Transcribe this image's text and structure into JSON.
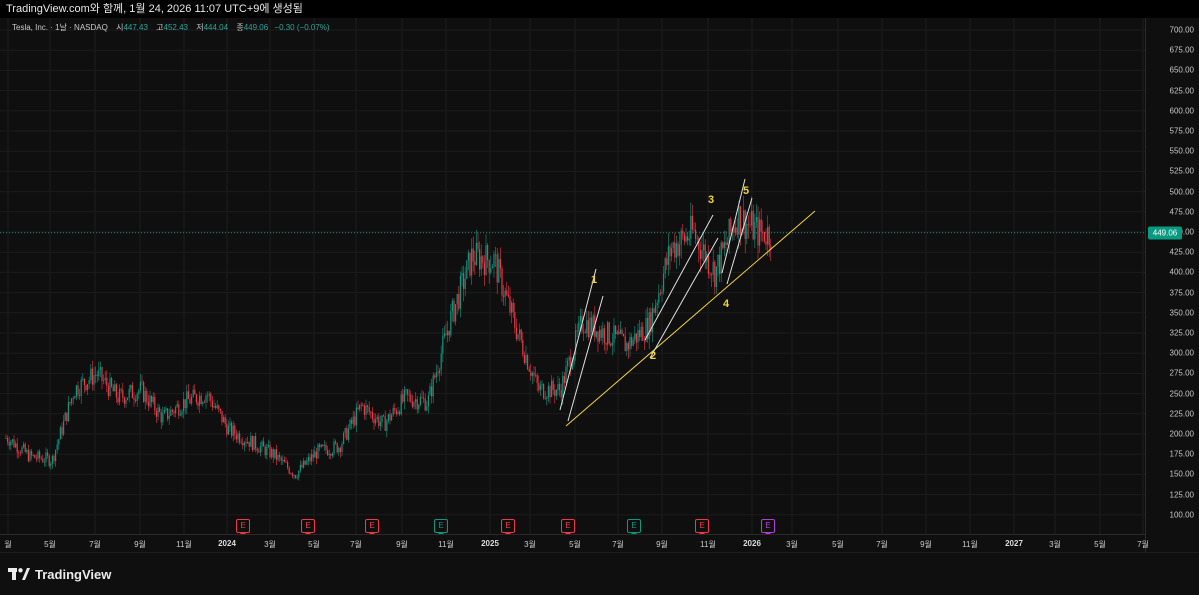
{
  "header": {
    "title": "TradingView.com와 함께, 1월 24, 2026 11:07 UTC+9에 생성됨"
  },
  "legend": {
    "symbol": "Tesla, Inc. · 1날 · NASDAQ",
    "open_label": "시",
    "open": "447.43",
    "high_label": "고",
    "high": "452.43",
    "low_label": "저",
    "low": "444.04",
    "close_label": "종",
    "close": "449.06",
    "change": "−0.30 (−0.07%)"
  },
  "last_price": "449.06",
  "colors": {
    "up": "#089981",
    "down": "#f23645",
    "trendline": "#f2d335",
    "channel": "#e0e0e0",
    "earnings_red": "#f23645",
    "earnings_green": "#089981",
    "earnings_purple": "#b33bd6"
  },
  "yaxis": {
    "ticks": [
      "700.00",
      "675.00",
      "650.00",
      "625.00",
      "600.00",
      "575.00",
      "550.00",
      "525.00",
      "500.00",
      "475.00",
      "450.00",
      "425.00",
      "400.00",
      "375.00",
      "350.00",
      "325.00",
      "300.00",
      "275.00",
      "250.00",
      "225.00",
      "200.00",
      "175.00",
      "150.00",
      "125.00",
      "100.00"
    ]
  },
  "xaxis": {
    "ticks": [
      {
        "label": "월",
        "year": false
      },
      {
        "label": "5월",
        "year": false
      },
      {
        "label": "7월",
        "year": false
      },
      {
        "label": "9월",
        "year": false
      },
      {
        "label": "11월",
        "year": false
      },
      {
        "label": "2024",
        "year": true
      },
      {
        "label": "3월",
        "year": false
      },
      {
        "label": "5월",
        "year": false
      },
      {
        "label": "7월",
        "year": false
      },
      {
        "label": "9월",
        "year": false
      },
      {
        "label": "11월",
        "year": false
      },
      {
        "label": "2025",
        "year": true
      },
      {
        "label": "3월",
        "year": false
      },
      {
        "label": "5월",
        "year": false
      },
      {
        "label": "7월",
        "year": false
      },
      {
        "label": "9월",
        "year": false
      },
      {
        "label": "11월",
        "year": false
      },
      {
        "label": "2026",
        "year": true
      },
      {
        "label": "3월",
        "year": false
      },
      {
        "label": "5월",
        "year": false
      },
      {
        "label": "7월",
        "year": false
      },
      {
        "label": "9월",
        "year": false
      },
      {
        "label": "11월",
        "year": false
      },
      {
        "label": "2027",
        "year": true
      },
      {
        "label": "3월",
        "year": false
      },
      {
        "label": "5월",
        "year": false
      },
      {
        "label": "7월",
        "year": false
      }
    ]
  },
  "earnings_markers": [
    {
      "label": "E",
      "kind": "red"
    },
    {
      "label": "E",
      "kind": "red"
    },
    {
      "label": "E",
      "kind": "red"
    },
    {
      "label": "E",
      "kind": "green"
    },
    {
      "label": "E",
      "kind": "red"
    },
    {
      "label": "E",
      "kind": "red"
    },
    {
      "label": "E",
      "kind": "green"
    },
    {
      "label": "E",
      "kind": "red"
    },
    {
      "label": "E",
      "kind": "purple"
    }
  ],
  "wave_labels": [
    "1",
    "2",
    "3",
    "4",
    "5"
  ],
  "chart_data": {
    "type": "candlestick",
    "symbol": "TSLA",
    "interval": "1D",
    "y_range": [
      100,
      700
    ],
    "x_range": [
      "2023-03",
      "2027-07"
    ],
    "last_close": 449.06,
    "series": [
      {
        "name": "Tesla, Inc.",
        "points": [
          [
            "2023-03",
            195
          ],
          [
            "2023-04",
            172
          ],
          [
            "2023-05",
            168
          ],
          [
            "2023-06",
            255
          ],
          [
            "2023-07",
            275
          ],
          [
            "2023-08",
            245
          ],
          [
            "2023-09",
            255
          ],
          [
            "2023-10",
            220
          ],
          [
            "2023-11",
            240
          ],
          [
            "2023-12",
            250
          ],
          [
            "2024-01",
            205
          ],
          [
            "2024-02",
            190
          ],
          [
            "2024-03",
            175
          ],
          [
            "2024-04",
            150
          ],
          [
            "2024-05",
            178
          ],
          [
            "2024-06",
            185
          ],
          [
            "2024-07",
            235
          ],
          [
            "2024-08",
            212
          ],
          [
            "2024-09",
            245
          ],
          [
            "2024-10",
            240
          ],
          [
            "2024-11",
            340
          ],
          [
            "2024-12",
            420
          ],
          [
            "2025-01",
            415
          ],
          [
            "2025-02",
            330
          ],
          [
            "2025-03",
            255
          ],
          [
            "2025-04",
            255
          ],
          [
            "2025-05",
            340
          ],
          [
            "2025-06",
            325
          ],
          [
            "2025-07",
            310
          ],
          [
            "2025-08",
            335
          ],
          [
            "2025-09",
            430
          ],
          [
            "2025-10",
            450
          ],
          [
            "2025-11",
            400
          ],
          [
            "2025-12",
            470
          ],
          [
            "2026-01",
            449
          ]
        ]
      }
    ],
    "annotations": {
      "wave_counts": [
        "1",
        "2",
        "3",
        "4",
        "5"
      ],
      "trendline": "rising support line from the April 2025 low",
      "horizontal_line": 449.06
    }
  }
}
